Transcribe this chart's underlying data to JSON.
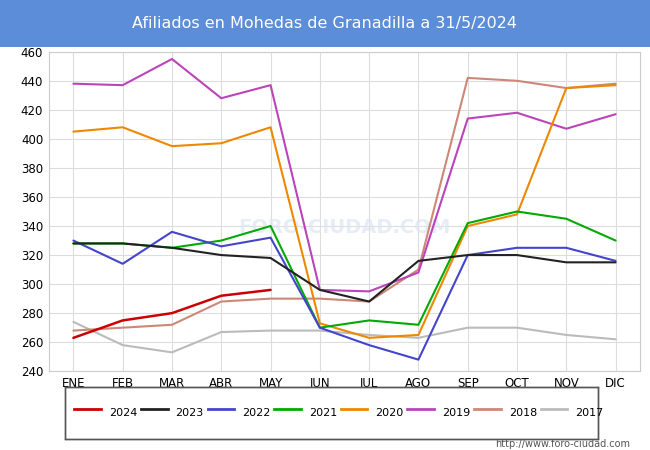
{
  "title": "Afiliados en Mohedas de Granadilla a 31/5/2024",
  "title_bg_color": "#5b8dd9",
  "title_text_color": "#ffffff",
  "months": [
    "ENE",
    "FEB",
    "MAR",
    "ABR",
    "MAY",
    "JUN",
    "JUL",
    "AGO",
    "SEP",
    "OCT",
    "NOV",
    "DIC"
  ],
  "ylim": [
    240,
    460
  ],
  "yticks": [
    240,
    260,
    280,
    300,
    320,
    340,
    360,
    380,
    400,
    420,
    440,
    460
  ],
  "series": {
    "2024": {
      "color": "#cc0000",
      "data": [
        263,
        275,
        280,
        292,
        296,
        null,
        null,
        null,
        null,
        null,
        null,
        null
      ]
    },
    "2023": {
      "color": "#222222",
      "data": [
        328,
        328,
        325,
        320,
        318,
        296,
        288,
        316,
        320,
        320,
        315,
        315
      ]
    },
    "2022": {
      "color": "#4444cc",
      "data": [
        330,
        314,
        336,
        326,
        332,
        270,
        258,
        248,
        320,
        325,
        325,
        316
      ]
    },
    "2021": {
      "color": "#00aa00",
      "data": [
        328,
        328,
        325,
        330,
        340,
        270,
        275,
        272,
        342,
        350,
        345,
        330
      ]
    },
    "2020": {
      "color": "#ee8800",
      "data": [
        405,
        408,
        395,
        397,
        408,
        273,
        263,
        265,
        340,
        348,
        435,
        437
      ]
    },
    "2019": {
      "color": "#bb44bb",
      "data": [
        438,
        437,
        455,
        428,
        437,
        296,
        295,
        308,
        414,
        418,
        407,
        417
      ]
    },
    "2018": {
      "color": "#cc8877",
      "data": [
        268,
        270,
        272,
        288,
        290,
        290,
        288,
        310,
        442,
        440,
        435,
        438
      ]
    },
    "2017": {
      "color": "#bbbbbb",
      "data": [
        274,
        258,
        253,
        267,
        268,
        268,
        265,
        263,
        270,
        270,
        265,
        262
      ]
    }
  },
  "footer_url": "http://www.foro-ciudad.com",
  "grid_color": "#dddddd"
}
